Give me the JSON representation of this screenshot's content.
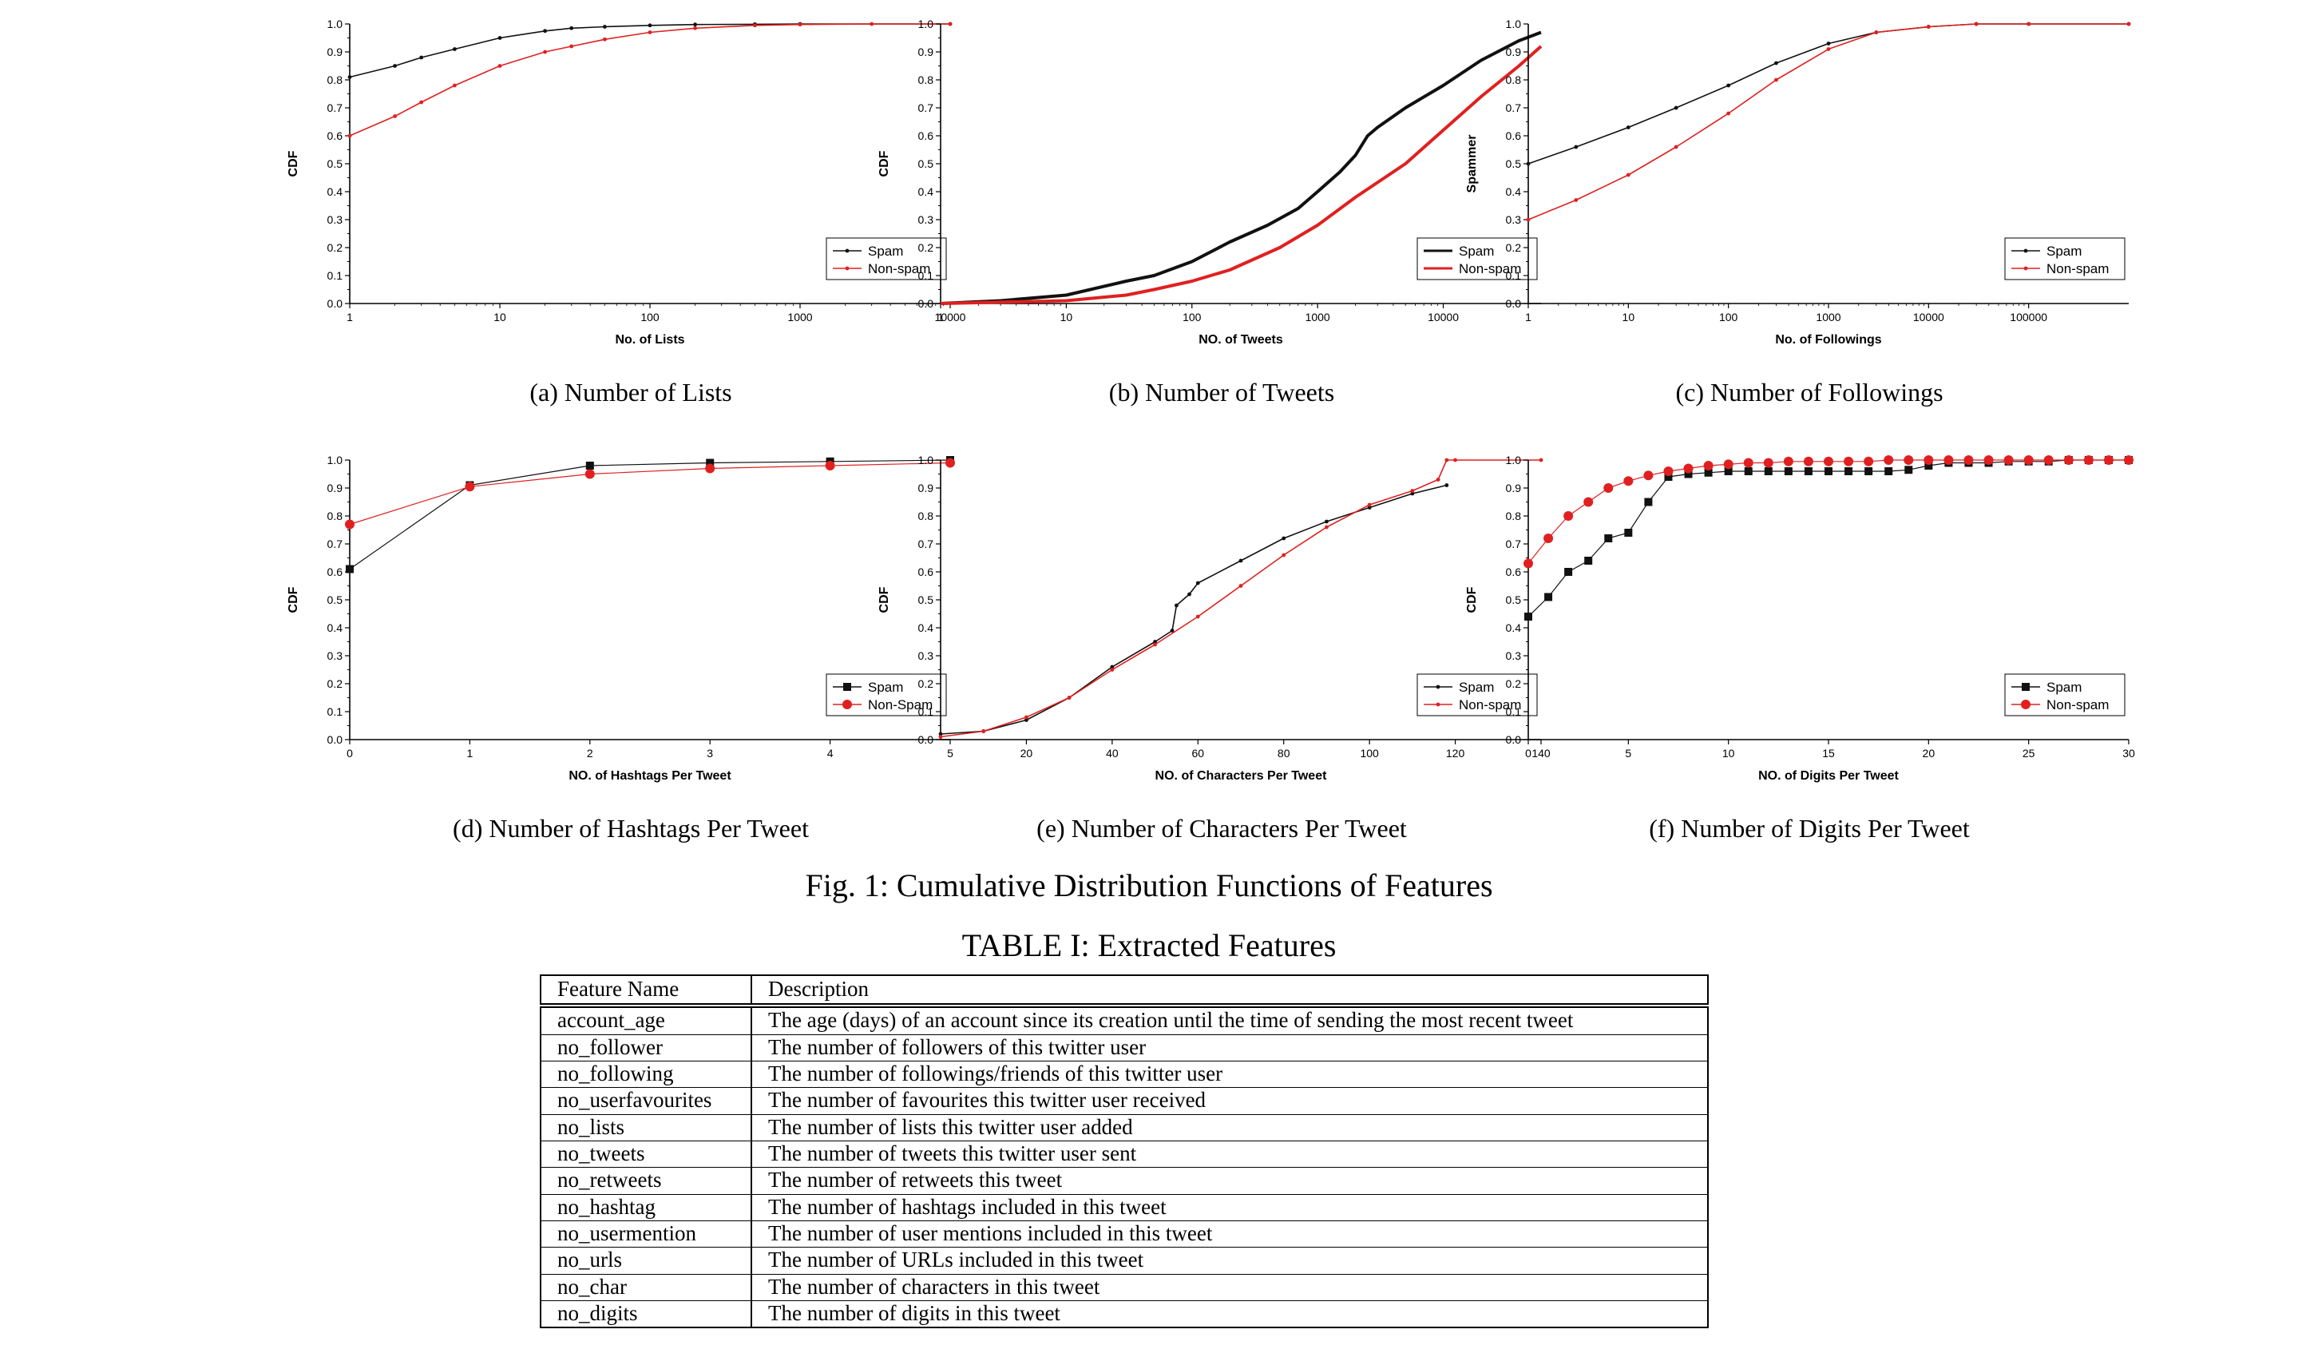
{
  "figure": {
    "caption": "Fig. 1: Cumulative Distribution Functions of Features"
  },
  "colors": {
    "spam": "#111111",
    "nonspam": "#e02020"
  },
  "chart_data": [
    {
      "id": "a",
      "type": "line",
      "subcaption": "(a)  Number of Lists",
      "xlabel": "No. of Lists",
      "ylabel": "CDF",
      "xscale": "log",
      "xlim": [
        1,
        10000
      ],
      "ylim": [
        0,
        1
      ],
      "xticks": [
        1,
        10,
        100,
        1000,
        10000
      ],
      "xticklabels": [
        "1",
        "10",
        "100",
        "1000",
        "10000"
      ],
      "yticks": [
        0,
        0.1,
        0.2,
        0.3,
        0.4,
        0.5,
        0.6,
        0.7,
        0.8,
        0.9,
        1.0
      ],
      "yticklabels": [
        "0.0",
        "0.1",
        "0.2",
        "0.3",
        "0.4",
        "0.5",
        "0.6",
        "0.7",
        "0.8",
        "0.9",
        "1.0"
      ],
      "marker": "dot",
      "legend": {
        "position": "bottom-right",
        "entries": [
          "Spam",
          "Non-spam"
        ]
      },
      "series": [
        {
          "name": "Spam",
          "x": [
            1,
            2,
            3,
            5,
            10,
            20,
            30,
            50,
            100,
            200,
            500,
            1000,
            10000
          ],
          "y": [
            0.81,
            0.85,
            0.88,
            0.91,
            0.95,
            0.975,
            0.985,
            0.99,
            0.995,
            0.998,
            0.999,
            1.0,
            1.0
          ]
        },
        {
          "name": "Non-spam",
          "x": [
            1,
            2,
            3,
            5,
            10,
            20,
            30,
            50,
            100,
            200,
            500,
            1000,
            3000,
            10000
          ],
          "y": [
            0.6,
            0.67,
            0.72,
            0.78,
            0.85,
            0.9,
            0.92,
            0.945,
            0.97,
            0.985,
            0.995,
            0.998,
            1.0,
            1.0
          ]
        }
      ]
    },
    {
      "id": "b",
      "type": "line",
      "subcaption": "(b)  Number of Tweets",
      "xlabel": "NO. of Tweets",
      "ylabel": "CDF",
      "xscale": "log",
      "xlim": [
        1,
        60000
      ],
      "ylim": [
        0,
        1
      ],
      "xticks": [
        1,
        10,
        100,
        1000,
        10000
      ],
      "xticklabels": [
        "1",
        "10",
        "100",
        "1000",
        "10000"
      ],
      "yticks": [
        0,
        0.1,
        0.2,
        0.3,
        0.4,
        0.5,
        0.6,
        0.7,
        0.8,
        0.9,
        1.0
      ],
      "yticklabels": [
        "0.0",
        "0.1",
        "0.2",
        "0.3",
        "0.4",
        "0.5",
        "0.6",
        "0.7",
        "0.8",
        "0.9",
        "1.0"
      ],
      "marker": "none",
      "legend": {
        "position": "bottom-right",
        "entries": [
          "Spam",
          "Non-spam"
        ]
      },
      "series": [
        {
          "name": "Spam",
          "x": [
            1,
            3,
            10,
            30,
            50,
            100,
            200,
            400,
            700,
            1000,
            1500,
            2000,
            2500,
            3000,
            5000,
            10000,
            20000,
            40000,
            60000
          ],
          "y": [
            0.0,
            0.01,
            0.03,
            0.08,
            0.1,
            0.15,
            0.22,
            0.28,
            0.34,
            0.4,
            0.47,
            0.53,
            0.6,
            0.63,
            0.7,
            0.78,
            0.87,
            0.94,
            0.97
          ]
        },
        {
          "name": "Non-spam",
          "x": [
            1,
            10,
            30,
            50,
            100,
            200,
            500,
            1000,
            2000,
            5000,
            10000,
            20000,
            40000,
            60000
          ],
          "y": [
            0.0,
            0.01,
            0.03,
            0.05,
            0.08,
            0.12,
            0.2,
            0.28,
            0.38,
            0.5,
            0.62,
            0.74,
            0.85,
            0.92
          ]
        }
      ]
    },
    {
      "id": "c",
      "type": "line",
      "subcaption": "(c)  Number of Followings",
      "xlabel": "No. of Followings",
      "ylabel": "Spammer",
      "xscale": "log",
      "xlim": [
        1,
        1000000
      ],
      "ylim": [
        0,
        1
      ],
      "xticks": [
        1,
        10,
        100,
        1000,
        10000,
        100000
      ],
      "xticklabels": [
        "1",
        "10",
        "100",
        "1000",
        "10000",
        "100000"
      ],
      "yticks": [
        0,
        0.1,
        0.2,
        0.3,
        0.4,
        0.5,
        0.6,
        0.7,
        0.8,
        0.9,
        1.0
      ],
      "yticklabels": [
        "0.0",
        "0.1",
        "0.2",
        "0.3",
        "0.4",
        "0.5",
        "0.6",
        "0.7",
        "0.8",
        "0.9",
        "1.0"
      ],
      "marker": "dot",
      "legend": {
        "position": "bottom-right",
        "entries": [
          "Spam",
          "Non-spam"
        ]
      },
      "series": [
        {
          "name": "Spam",
          "x": [
            1,
            3,
            10,
            30,
            100,
            300,
            1000,
            3000,
            10000,
            30000,
            100000,
            1000000
          ],
          "y": [
            0.5,
            0.56,
            0.63,
            0.7,
            0.78,
            0.86,
            0.93,
            0.97,
            0.99,
            1.0,
            1.0,
            1.0
          ]
        },
        {
          "name": "Non-spam",
          "x": [
            1,
            3,
            10,
            30,
            100,
            300,
            1000,
            3000,
            10000,
            30000,
            100000,
            1000000
          ],
          "y": [
            0.3,
            0.37,
            0.46,
            0.56,
            0.68,
            0.8,
            0.91,
            0.97,
            0.99,
            1.0,
            1.0,
            1.0
          ]
        }
      ]
    },
    {
      "id": "d",
      "type": "line",
      "subcaption": "(d)  Number of Hashtags Per Tweet",
      "xlabel": "NO. of Hashtags Per Tweet",
      "ylabel": "CDF",
      "xscale": "linear",
      "xlim": [
        0,
        5
      ],
      "ylim": [
        0,
        1
      ],
      "xticks": [
        0,
        1,
        2,
        3,
        4,
        5
      ],
      "xticklabels": [
        "0",
        "1",
        "2",
        "3",
        "4",
        "5"
      ],
      "yticks": [
        0,
        0.1,
        0.2,
        0.3,
        0.4,
        0.5,
        0.6,
        0.7,
        0.8,
        0.9,
        1.0
      ],
      "yticklabels": [
        "0.0",
        "0.1",
        "0.2",
        "0.3",
        "0.4",
        "0.5",
        "0.6",
        "0.7",
        "0.8",
        "0.9",
        "1.0"
      ],
      "marker": "big",
      "legend": {
        "position": "bottom-right",
        "entries": [
          "Spam",
          "Non-Spam"
        ]
      },
      "series": [
        {
          "name": "Spam",
          "x": [
            0,
            1,
            2,
            3,
            4,
            5
          ],
          "y": [
            0.61,
            0.91,
            0.98,
            0.99,
            0.995,
            1.0
          ]
        },
        {
          "name": "Non-Spam",
          "x": [
            0,
            1,
            2,
            3,
            4,
            5
          ],
          "y": [
            0.77,
            0.905,
            0.95,
            0.97,
            0.98,
            0.99
          ]
        }
      ]
    },
    {
      "id": "e",
      "type": "line",
      "subcaption": "(e)  Number of Characters Per Tweet",
      "xlabel": "NO. of Characters Per Tweet",
      "ylabel": "CDF",
      "xscale": "linear",
      "xlim": [
        0,
        140
      ],
      "ylim": [
        0,
        1
      ],
      "xticks": [
        20,
        40,
        60,
        80,
        100,
        120,
        140
      ],
      "xticklabels": [
        "20",
        "40",
        "60",
        "80",
        "100",
        "120",
        "140"
      ],
      "yticks": [
        0,
        0.1,
        0.2,
        0.3,
        0.4,
        0.5,
        0.6,
        0.7,
        0.8,
        0.9,
        1.0
      ],
      "yticklabels": [
        "0.0",
        "0.1",
        "0.2",
        "0.3",
        "0.4",
        "0.5",
        "0.6",
        "0.7",
        "0.8",
        "0.9",
        "1.0"
      ],
      "marker": "dot",
      "legend": {
        "position": "bottom-right",
        "entries": [
          "Spam",
          "Non-spam"
        ]
      },
      "series": [
        {
          "name": "Spam",
          "x": [
            0,
            10,
            20,
            30,
            40,
            50,
            54,
            55,
            58,
            60,
            70,
            80,
            90,
            100,
            110,
            118
          ],
          "y": [
            0.02,
            0.03,
            0.07,
            0.15,
            0.26,
            0.35,
            0.39,
            0.48,
            0.52,
            0.56,
            0.64,
            0.72,
            0.78,
            0.83,
            0.88,
            0.91
          ]
        },
        {
          "name": "Non-spam",
          "x": [
            0,
            10,
            20,
            30,
            40,
            50,
            60,
            70,
            80,
            90,
            100,
            110,
            116,
            118,
            120,
            140
          ],
          "y": [
            0.01,
            0.03,
            0.08,
            0.15,
            0.25,
            0.34,
            0.44,
            0.55,
            0.66,
            0.76,
            0.84,
            0.89,
            0.93,
            1.0,
            1.0,
            1.0
          ]
        }
      ]
    },
    {
      "id": "f",
      "type": "line",
      "subcaption": "(f)  Number of Digits Per Tweet",
      "xlabel": "NO. of Digits Per Tweet",
      "ylabel": "CDF",
      "xscale": "linear",
      "xlim": [
        0,
        30
      ],
      "ylim": [
        0,
        1
      ],
      "xticks": [
        0,
        5,
        10,
        15,
        20,
        25,
        30
      ],
      "xticklabels": [
        "0",
        "5",
        "10",
        "15",
        "20",
        "25",
        "30"
      ],
      "yticks": [
        0,
        0.1,
        0.2,
        0.3,
        0.4,
        0.5,
        0.6,
        0.7,
        0.8,
        0.9,
        1.0
      ],
      "yticklabels": [
        "0.0",
        "0.1",
        "0.2",
        "0.3",
        "0.4",
        "0.5",
        "0.6",
        "0.7",
        "0.8",
        "0.9",
        "1.0"
      ],
      "marker": "big",
      "legend": {
        "position": "bottom-right",
        "entries": [
          "Spam",
          "Non-spam"
        ]
      },
      "series": [
        {
          "name": "Spam",
          "x": [
            0,
            1,
            2,
            3,
            4,
            5,
            6,
            7,
            8,
            9,
            10,
            11,
            12,
            13,
            14,
            15,
            16,
            17,
            18,
            19,
            20,
            21,
            22,
            23,
            24,
            25,
            26,
            27,
            28,
            29,
            30
          ],
          "y": [
            0.44,
            0.51,
            0.6,
            0.64,
            0.72,
            0.74,
            0.85,
            0.94,
            0.95,
            0.955,
            0.96,
            0.96,
            0.96,
            0.96,
            0.96,
            0.96,
            0.96,
            0.96,
            0.96,
            0.965,
            0.98,
            0.99,
            0.99,
            0.99,
            0.995,
            0.995,
            0.995,
            1.0,
            1.0,
            1.0,
            1.0
          ]
        },
        {
          "name": "Non-spam",
          "x": [
            0,
            1,
            2,
            3,
            4,
            5,
            6,
            7,
            8,
            9,
            10,
            11,
            12,
            13,
            14,
            15,
            16,
            17,
            18,
            19,
            20,
            21,
            22,
            23,
            24,
            25,
            26,
            27,
            28,
            29,
            30
          ],
          "y": [
            0.63,
            0.72,
            0.8,
            0.85,
            0.9,
            0.925,
            0.945,
            0.96,
            0.97,
            0.98,
            0.985,
            0.99,
            0.99,
            0.995,
            0.995,
            0.995,
            0.995,
            0.995,
            1.0,
            1.0,
            1.0,
            1.0,
            1.0,
            1.0,
            1.0,
            1.0,
            1.0,
            1.0,
            1.0,
            1.0,
            1.0
          ]
        }
      ]
    }
  ],
  "table": {
    "caption": "TABLE I: Extracted Features",
    "headers": [
      "Feature Name",
      "Description"
    ],
    "rows": [
      [
        "account_age",
        "The age (days) of an account since its creation until the time of sending the most recent tweet"
      ],
      [
        "no_follower",
        "The number of followers of this twitter user"
      ],
      [
        "no_following",
        "The number of followings/friends of this twitter user"
      ],
      [
        "no_userfavourites",
        "The number of favourites this twitter user received"
      ],
      [
        "no_lists",
        "The number of lists this twitter user added"
      ],
      [
        "no_tweets",
        "The number of tweets this twitter user sent"
      ],
      [
        "no_retweets",
        "The number of retweets this tweet"
      ],
      [
        "no_hashtag",
        "The number of hashtags included in this tweet"
      ],
      [
        "no_usermention",
        "The number of user mentions included in this tweet"
      ],
      [
        "no_urls",
        "The number of URLs included in this tweet"
      ],
      [
        "no_char",
        "The number of characters in this tweet"
      ],
      [
        "no_digits",
        "The number of digits in this tweet"
      ]
    ]
  }
}
